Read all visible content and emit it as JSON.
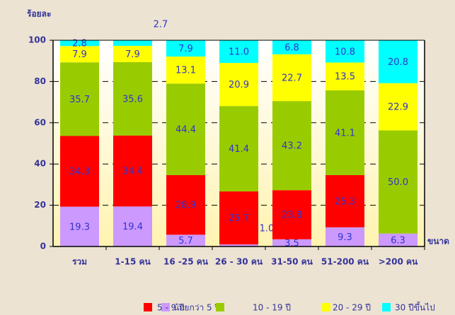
{
  "chart_data": {
    "type": "stacked_bar",
    "y_label": "ร้อยละ",
    "x_label": "ขนาด",
    "categories": [
      "รวม",
      "1-15 คน",
      "16 -25 คน",
      "26 - 30 คน",
      "31-50 คน",
      "51-200 คน",
      ">200 คน"
    ],
    "series": [
      {
        "name": "น้อยกว่า 5 ปี",
        "color": "#cc99ff",
        "values": [
          19.3,
          19.4,
          5.7,
          1.0,
          3.5,
          9.3,
          6.3
        ],
        "value_labels": [
          "19.3",
          "19.4",
          "5.7",
          "1.0",
          "3.5",
          "9.3",
          "6.3"
        ]
      },
      {
        "name": "5 - 9 ปี",
        "color": "#ff0000",
        "values": [
          34.3,
          34.4,
          28.9,
          25.7,
          23.8,
          25.3,
          0
        ],
        "value_labels": [
          "34.3",
          "34.4",
          "28.9",
          "25.7",
          "23.8",
          "25.3",
          null
        ]
      },
      {
        "name": "10 - 19 ปี",
        "color": "#99cc00",
        "values": [
          35.7,
          35.6,
          44.4,
          41.4,
          43.2,
          41.1,
          50.0
        ],
        "value_labels": [
          "35.7",
          "35.6",
          "44.4",
          "41.4",
          "43.2",
          "41.1",
          "50.0"
        ]
      },
      {
        "name": "20 - 29 ปี",
        "color": "#ffff00",
        "values": [
          7.9,
          7.9,
          13.1,
          20.9,
          22.7,
          13.5,
          22.9
        ],
        "value_labels": [
          "7.9",
          "7.9",
          "13.1",
          "20.9",
          "22.7",
          "13.5",
          "22.9"
        ]
      },
      {
        "name": "30 ปีขึ้นไป",
        "color": "#00ffff",
        "values": [
          2.8,
          2.7,
          7.9,
          11.0,
          6.8,
          10.8,
          20.8
        ],
        "value_labels": [
          "2.8",
          "2.7",
          "7.9",
          "11.0",
          "6.8",
          "10.8",
          "20.8"
        ]
      }
    ],
    "ylim": [
      0,
      100
    ],
    "yticks": [
      0,
      20,
      40,
      60,
      80,
      100
    ],
    "grid": true
  }
}
